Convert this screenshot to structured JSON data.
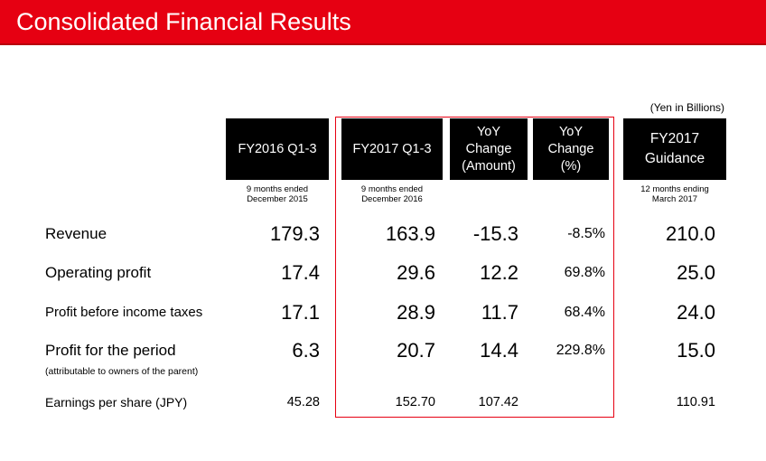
{
  "title": "Consolidated Financial Results",
  "unit_note": "(Yen in Billions)",
  "columns": [
    {
      "id": "fy2016",
      "lines": [
        "FY2016 Q1-3"
      ],
      "sub": [
        "9 months ended",
        "December 2015"
      ]
    },
    {
      "id": "fy2017",
      "lines": [
        "FY2017 Q1-3"
      ],
      "sub": [
        "9 months ended",
        "December 2016"
      ]
    },
    {
      "id": "yoy_amount",
      "lines": [
        "YoY",
        "Change",
        "(Amount)"
      ],
      "sub": []
    },
    {
      "id": "yoy_pct",
      "lines": [
        "YoY",
        "Change",
        "(%)"
      ],
      "sub": []
    },
    {
      "id": "guidance",
      "lines": [
        "FY2017",
        "Guidance"
      ],
      "sub": [
        "12 months ending",
        "March 2017"
      ]
    }
  ],
  "rows": [
    {
      "label": "Revenue",
      "values": [
        "179.3",
        "163.9",
        "-15.3",
        "-8.5%",
        "210.0"
      ]
    },
    {
      "label": "Operating profit",
      "values": [
        "17.4",
        "29.6",
        "12.2",
        "69.8%",
        "25.0"
      ]
    },
    {
      "label": "Profit before income taxes",
      "values": [
        "17.1",
        "28.9",
        "11.7",
        "68.4%",
        "24.0"
      ]
    },
    {
      "label": "Profit for the period",
      "values": [
        "6.3",
        "20.7",
        "14.4",
        "229.8%",
        "15.0"
      ],
      "note": "(attributable to owners of the parent)"
    },
    {
      "label": "Earnings per share (JPY)",
      "values": [
        "45.28",
        "152.70",
        "107.42",
        "",
        "110.91"
      ]
    }
  ],
  "colors": {
    "title_bar": "#e60012",
    "header_bg": "#000000",
    "highlight_border": "#e60012"
  }
}
